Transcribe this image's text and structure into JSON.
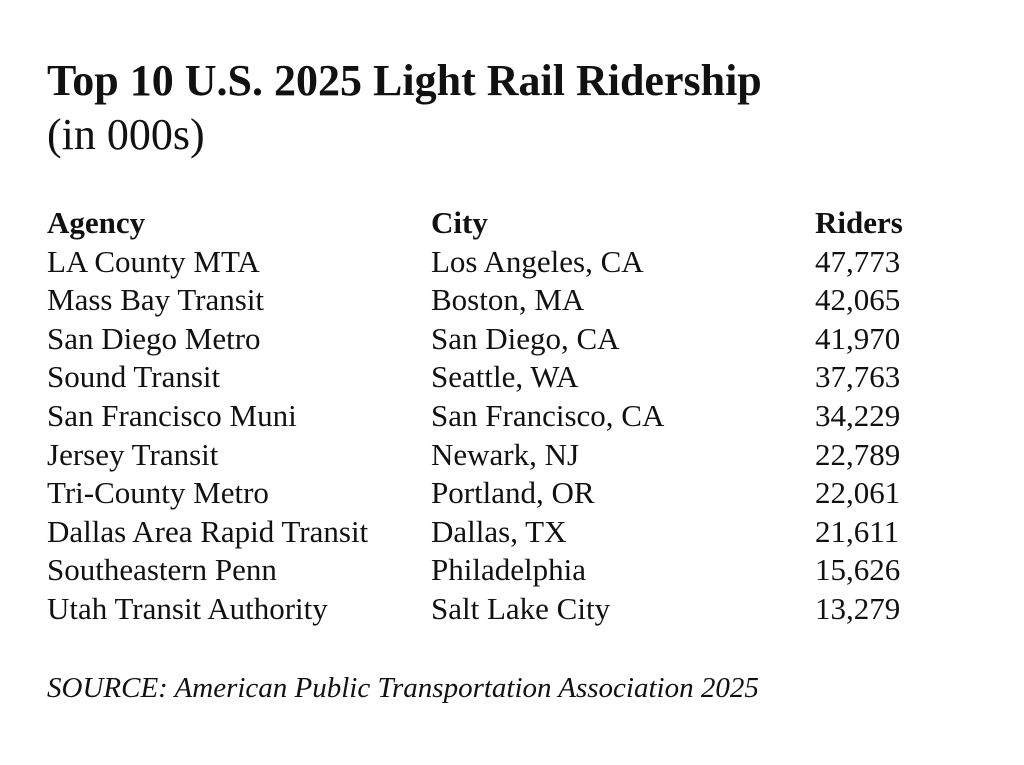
{
  "title": "Top 10 U.S. 2025 Light Rail Ridership",
  "subtitle": "(in 000s)",
  "table": {
    "headers": [
      "Agency",
      "City",
      "Riders"
    ],
    "rows": [
      [
        "LA County MTA",
        "Los Angeles, CA",
        "47,773"
      ],
      [
        "Mass Bay Transit",
        "Boston, MA",
        "42,065"
      ],
      [
        "San Diego Metro",
        "San Diego, CA",
        "41,970"
      ],
      [
        "Sound Transit",
        "Seattle, WA",
        "37,763"
      ],
      [
        "San Francisco Muni",
        "San Francisco, CA",
        "34,229"
      ],
      [
        "Jersey Transit",
        "Newark, NJ",
        "22,789"
      ],
      [
        "Tri-County Metro",
        "Portland, OR",
        "22,061"
      ],
      [
        "Dallas Area Rapid Transit",
        "Dallas, TX",
        "21,611"
      ],
      [
        "Southeastern Penn",
        "Philadelphia",
        "15,626"
      ],
      [
        "Utah Transit Authority",
        "Salt Lake City",
        "13,279"
      ]
    ]
  },
  "source": "SOURCE: American Public Transportation Association 2025"
}
